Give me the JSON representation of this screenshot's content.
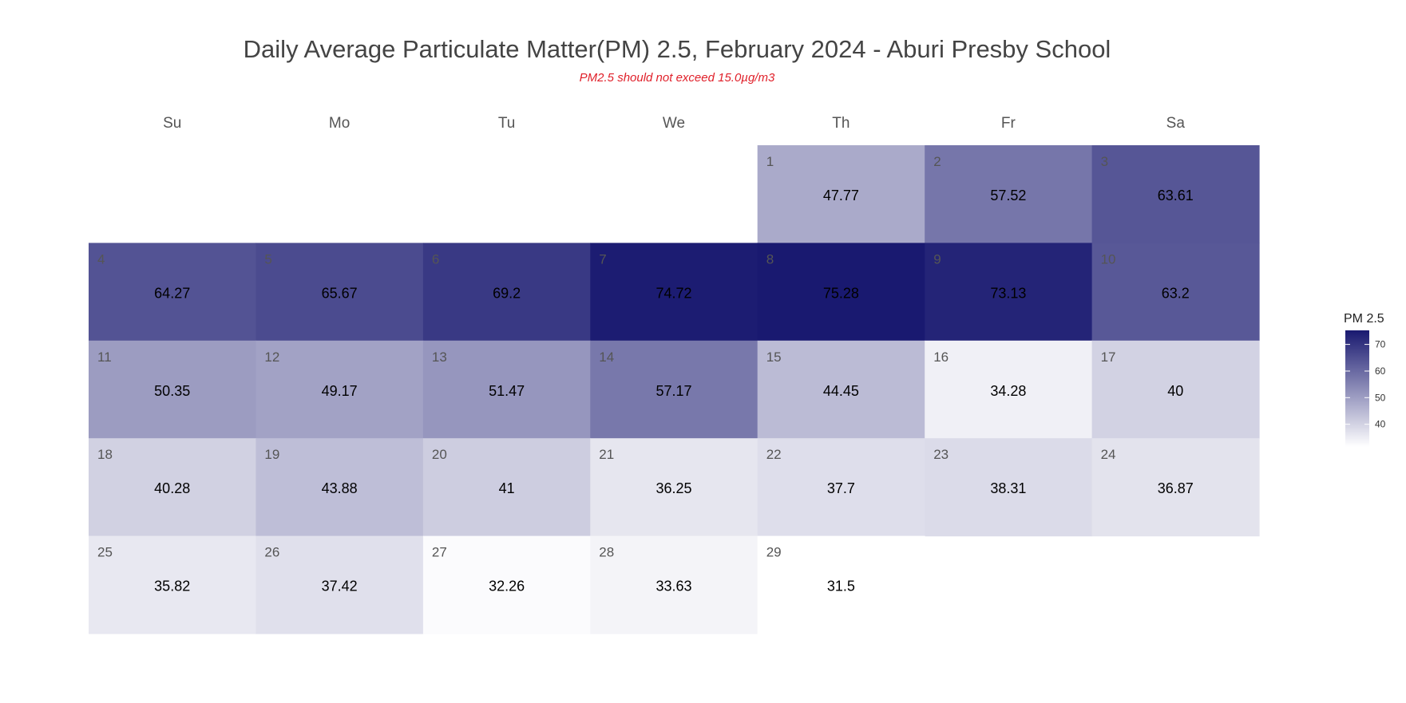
{
  "chart_data": {
    "type": "heatmap",
    "title": "Daily Average Particulate Matter(PM) 2.5, February 2024 - Aburi Presby School",
    "subtitle": "PM2.5 should not exceed 15.0µg/m3",
    "weekdays": [
      "Su",
      "Mo",
      "Tu",
      "We",
      "Th",
      "Fr",
      "Sa"
    ],
    "first_weekday_index": 4,
    "days": [
      {
        "day": "1",
        "value": "47.77"
      },
      {
        "day": "2",
        "value": "57.52"
      },
      {
        "day": "3",
        "value": "63.61"
      },
      {
        "day": "4",
        "value": "64.27"
      },
      {
        "day": "5",
        "value": "65.67"
      },
      {
        "day": "6",
        "value": "69.2"
      },
      {
        "day": "7",
        "value": "74.72"
      },
      {
        "day": "8",
        "value": "75.28"
      },
      {
        "day": "9",
        "value": "73.13"
      },
      {
        "day": "10",
        "value": "63.2"
      },
      {
        "day": "11",
        "value": "50.35"
      },
      {
        "day": "12",
        "value": "49.17"
      },
      {
        "day": "13",
        "value": "51.47"
      },
      {
        "day": "14",
        "value": "57.17"
      },
      {
        "day": "15",
        "value": "44.45"
      },
      {
        "day": "16",
        "value": "34.28"
      },
      {
        "day": "17",
        "value": "40"
      },
      {
        "day": "18",
        "value": "40.28"
      },
      {
        "day": "19",
        "value": "43.88"
      },
      {
        "day": "20",
        "value": "41"
      },
      {
        "day": "21",
        "value": "36.25"
      },
      {
        "day": "22",
        "value": "37.7"
      },
      {
        "day": "23",
        "value": "38.31"
      },
      {
        "day": "24",
        "value": "36.87"
      },
      {
        "day": "25",
        "value": "35.82"
      },
      {
        "day": "26",
        "value": "37.42"
      },
      {
        "day": "27",
        "value": "32.26"
      },
      {
        "day": "28",
        "value": "33.63"
      },
      {
        "day": "29",
        "value": "31.5"
      }
    ],
    "legend": {
      "title": "PM 2.5",
      "ticks": [
        "40",
        "50",
        "60",
        "70"
      ],
      "range": [
        31.5,
        75.28
      ],
      "placement": "right",
      "color_low": "#ffffff",
      "color_high": "#191970"
    }
  }
}
